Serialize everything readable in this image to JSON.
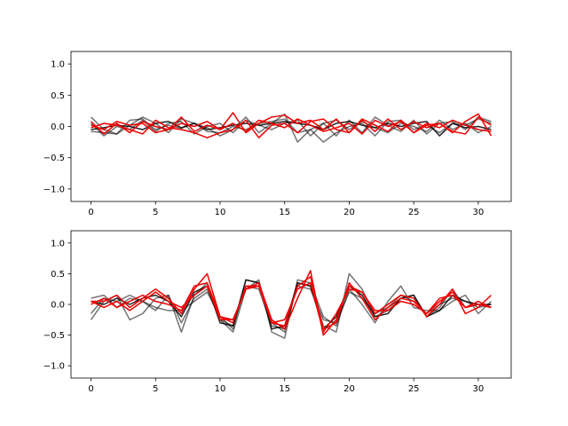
{
  "chart_data": [
    {
      "type": "line",
      "xlim": [
        -1.55,
        32.55
      ],
      "ylim": [
        -1.2,
        1.2
      ],
      "xticks": [
        0,
        5,
        10,
        15,
        20,
        25,
        30
      ],
      "xtick_labels": [
        "0",
        "5",
        "10",
        "15",
        "20",
        "25",
        "30"
      ],
      "yticks": [
        -1.0,
        -0.5,
        0.0,
        0.5,
        1.0
      ],
      "ytick_labels": [
        "−1.0",
        "−0.5",
        "0.0",
        "0.5",
        "1.0"
      ],
      "grid": false,
      "series": [
        {
          "color": "#000000",
          "opacity": 0.55,
          "values": [
            0.15,
            -0.05,
            -0.12,
            0.1,
            0.12,
            -0.05,
            0.02,
            -0.03,
            0.05,
            -0.08,
            -0.1,
            0.0,
            -0.05,
            0.05,
            0.08,
            0.12,
            -0.1,
            -0.05,
            -0.25,
            -0.1,
            0.0,
            0.05,
            -0.15,
            0.08,
            0.1,
            -0.05,
            0.02,
            -0.1,
            0.05,
            0.02,
            0.12,
            0.05
          ]
        },
        {
          "color": "#000000",
          "opacity": 0.55,
          "values": [
            -0.08,
            -0.1,
            -0.12,
            0.02,
            0.15,
            0.05,
            -0.1,
            0.12,
            0.05,
            -0.02,
            -0.15,
            -0.05,
            0.15,
            -0.1,
            0.05,
            0.2,
            -0.25,
            -0.05,
            0.05,
            -0.15,
            0.1,
            -0.1,
            0.15,
            0.02,
            -0.08,
            0.1,
            -0.12,
            0.05,
            0.08,
            -0.05,
            0.15,
            0.08
          ]
        },
        {
          "color": "#000000",
          "opacity": 0.55,
          "values": [
            0.05,
            -0.15,
            0.0,
            -0.05,
            0.1,
            -0.08,
            0.05,
            0.08,
            -0.12,
            0.0,
            0.05,
            -0.1,
            0.1,
            0.02,
            -0.05,
            0.05,
            0.1,
            -0.15,
            0.05,
            0.1,
            -0.05,
            0.08,
            -0.02,
            -0.1,
            0.05,
            0.0,
            -0.08,
            0.1,
            -0.05,
            0.05,
            -0.1,
            0.0
          ]
        },
        {
          "color": "#000000",
          "opacity": 0.85,
          "values": [
            -0.05,
            -0.02,
            0.02,
            0.0,
            -0.05,
            0.05,
            0.08,
            -0.02,
            0.05,
            -0.05,
            -0.02,
            0.02,
            0.05,
            0.02,
            0.05,
            0.08,
            0.05,
            0.02,
            -0.05,
            0.05,
            0.08,
            0.02,
            -0.02,
            0.05,
            0.0,
            0.05,
            0.08,
            -0.15,
            0.05,
            -0.02,
            0.0,
            -0.05
          ]
        },
        {
          "color": "#ee0000",
          "opacity": 1.0,
          "values": [
            0.08,
            -0.12,
            0.05,
            -0.1,
            0.08,
            0.0,
            -0.05,
            0.15,
            -0.08,
            0.02,
            -0.05,
            0.22,
            -0.1,
            0.05,
            0.15,
            0.18,
            0.05,
            0.1,
            -0.05,
            0.12,
            -0.1,
            0.1,
            -0.08,
            0.12,
            -0.05,
            0.08,
            -0.02,
            0.05,
            -0.1,
            0.08,
            0.2,
            -0.15
          ]
        },
        {
          "color": "#ee0000",
          "opacity": 1.0,
          "values": [
            -0.02,
            0.05,
            0.02,
            -0.05,
            -0.12,
            0.1,
            -0.02,
            -0.05,
            -0.1,
            -0.18,
            -0.1,
            -0.05,
            0.1,
            -0.18,
            0.02,
            0.05,
            -0.1,
            0.08,
            0.12,
            -0.05,
            -0.1,
            0.12,
            0.02,
            -0.08,
            0.1,
            -0.1,
            0.02,
            0.05,
            -0.08,
            -0.12,
            0.15,
            0.02
          ]
        },
        {
          "color": "#ee0000",
          "opacity": 1.0,
          "values": [
            0.02,
            -0.05,
            0.08,
            0.02,
            0.05,
            -0.1,
            -0.05,
            0.05,
            0.0,
            0.08,
            -0.05,
            0.05,
            -0.08,
            0.1,
            0.05,
            -0.02,
            0.12,
            0.02,
            -0.08,
            -0.02,
            0.05,
            -0.12,
            0.1,
            0.0,
            0.08,
            -0.1,
            0.05,
            -0.02,
            0.1,
            0.02,
            -0.05,
            -0.08
          ]
        }
      ]
    },
    {
      "type": "line",
      "xlim": [
        -1.55,
        32.55
      ],
      "ylim": [
        -1.2,
        1.2
      ],
      "xticks": [
        0,
        5,
        10,
        15,
        20,
        25,
        30
      ],
      "xtick_labels": [
        "0",
        "5",
        "10",
        "15",
        "20",
        "25",
        "30"
      ],
      "yticks": [
        -1.0,
        -0.5,
        0.0,
        0.5,
        1.0
      ],
      "ytick_labels": [
        "−1.0",
        "−0.5",
        "0.0",
        "0.5",
        "1.0"
      ],
      "grid": false,
      "series": [
        {
          "color": "#000000",
          "opacity": 0.55,
          "values": [
            -0.25,
            0.05,
            0.15,
            -0.25,
            -0.15,
            0.1,
            0.15,
            -0.45,
            0.15,
            0.35,
            -0.25,
            -0.45,
            0.25,
            0.4,
            -0.45,
            -0.55,
            0.4,
            0.35,
            -0.2,
            -0.35,
            0.25,
            0.0,
            -0.3,
            0.05,
            0.3,
            -0.05,
            -0.1,
            -0.1,
            0.05,
            0.15,
            -0.15,
            0.05
          ]
        },
        {
          "color": "#000000",
          "opacity": 0.55,
          "values": [
            0.1,
            0.15,
            -0.05,
            0.1,
            0.05,
            -0.05,
            -0.1,
            -0.1,
            0.05,
            0.2,
            -0.2,
            -0.4,
            0.4,
            0.35,
            -0.3,
            -0.45,
            0.35,
            0.3,
            -0.35,
            -0.45,
            0.5,
            0.25,
            -0.2,
            -0.1,
            0.1,
            0.15,
            -0.2,
            -0.05,
            0.25,
            -0.05,
            0.0,
            -0.05
          ]
        },
        {
          "color": "#000000",
          "opacity": 0.55,
          "values": [
            -0.15,
            0.1,
            0.05,
            0.15,
            0.05,
            -0.1,
            0.15,
            -0.3,
            0.1,
            0.25,
            -0.25,
            -0.35,
            0.3,
            0.25,
            -0.35,
            -0.4,
            0.3,
            0.25,
            -0.25,
            -0.3,
            0.2,
            0.1,
            -0.15,
            -0.05,
            0.15,
            0.05,
            -0.15,
            0.0,
            0.1,
            0.05,
            -0.05,
            0.0
          ]
        },
        {
          "color": "#000000",
          "opacity": 0.85,
          "values": [
            0.05,
            0.0,
            0.1,
            0.0,
            0.1,
            0.15,
            0.05,
            -0.2,
            0.2,
            0.3,
            -0.3,
            -0.35,
            0.4,
            0.35,
            -0.4,
            -0.35,
            0.35,
            0.3,
            -0.4,
            -0.2,
            0.3,
            0.15,
            -0.2,
            -0.15,
            0.1,
            0.15,
            -0.2,
            -0.1,
            0.15,
            0.05,
            0.0,
            0.0
          ]
        },
        {
          "color": "#ee0000",
          "opacity": 1.0,
          "values": [
            0.05,
            0.05,
            0.15,
            -0.05,
            0.1,
            0.25,
            0.1,
            -0.15,
            0.25,
            0.5,
            -0.2,
            -0.25,
            0.25,
            0.35,
            -0.25,
            -0.4,
            0.1,
            0.55,
            -0.5,
            -0.25,
            0.3,
            0.2,
            -0.15,
            0.0,
            0.15,
            0.1,
            -0.2,
            0.0,
            0.25,
            -0.15,
            -0.05,
            0.15
          ]
        },
        {
          "color": "#ee0000",
          "opacity": 1.0,
          "values": [
            0.0,
            0.1,
            -0.05,
            0.05,
            0.15,
            0.05,
            0.0,
            -0.1,
            0.3,
            0.35,
            -0.2,
            -0.3,
            0.3,
            0.3,
            -0.3,
            -0.35,
            0.3,
            0.45,
            -0.4,
            -0.3,
            0.35,
            0.1,
            -0.25,
            -0.05,
            0.1,
            0.05,
            -0.15,
            0.1,
            0.15,
            -0.05,
            0.05,
            -0.05
          ]
        },
        {
          "color": "#ee0000",
          "opacity": 1.0,
          "values": [
            0.05,
            -0.05,
            0.05,
            -0.1,
            0.05,
            0.2,
            0.05,
            -0.05,
            0.15,
            0.3,
            -0.25,
            -0.25,
            0.25,
            0.3,
            -0.3,
            -0.25,
            0.25,
            0.35,
            -0.45,
            -0.15,
            0.25,
            0.2,
            -0.1,
            -0.1,
            0.05,
            0.0,
            -0.15,
            0.05,
            0.2,
            -0.05,
            0.0,
            -0.05
          ]
        }
      ]
    }
  ]
}
